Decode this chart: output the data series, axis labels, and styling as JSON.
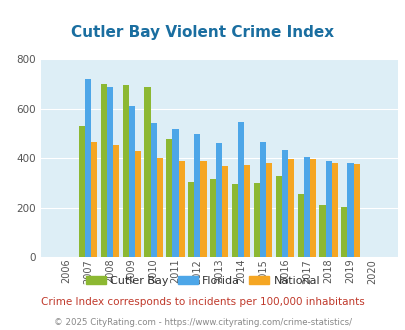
{
  "title": "Cutler Bay Violent Crime Index",
  "subtitle": "Crime Index corresponds to incidents per 100,000 inhabitants",
  "copyright": "© 2025 CityRating.com - https://www.cityrating.com/crime-statistics/",
  "years": [
    "2006",
    "2007",
    "2008",
    "2009",
    "2010",
    "2011",
    "2012",
    "2013",
    "2014",
    "2015",
    "2016",
    "2017",
    "2018",
    "2019",
    "2020"
  ],
  "cutler_bay": [
    0,
    530,
    700,
    695,
    690,
    478,
    305,
    315,
    295,
    300,
    330,
    255,
    210,
    205,
    0
  ],
  "florida": [
    0,
    720,
    690,
    610,
    545,
    520,
    498,
    462,
    547,
    468,
    433,
    405,
    388,
    380,
    0
  ],
  "national": [
    0,
    468,
    455,
    428,
    400,
    388,
    388,
    368,
    375,
    383,
    398,
    398,
    381,
    379,
    0
  ],
  "bar_width": 0.28,
  "cutler_bay_color": "#8cb832",
  "florida_color": "#4da6e8",
  "national_color": "#f5a623",
  "bg_color": "#ddeef6",
  "title_color": "#1a6ea0",
  "ylim": [
    0,
    800
  ],
  "yticks": [
    0,
    200,
    400,
    600,
    800
  ],
  "legend_labels": [
    "Cutler Bay",
    "Florida",
    "National"
  ],
  "subtitle_color": "#c0392b",
  "copyright_color": "#888888"
}
